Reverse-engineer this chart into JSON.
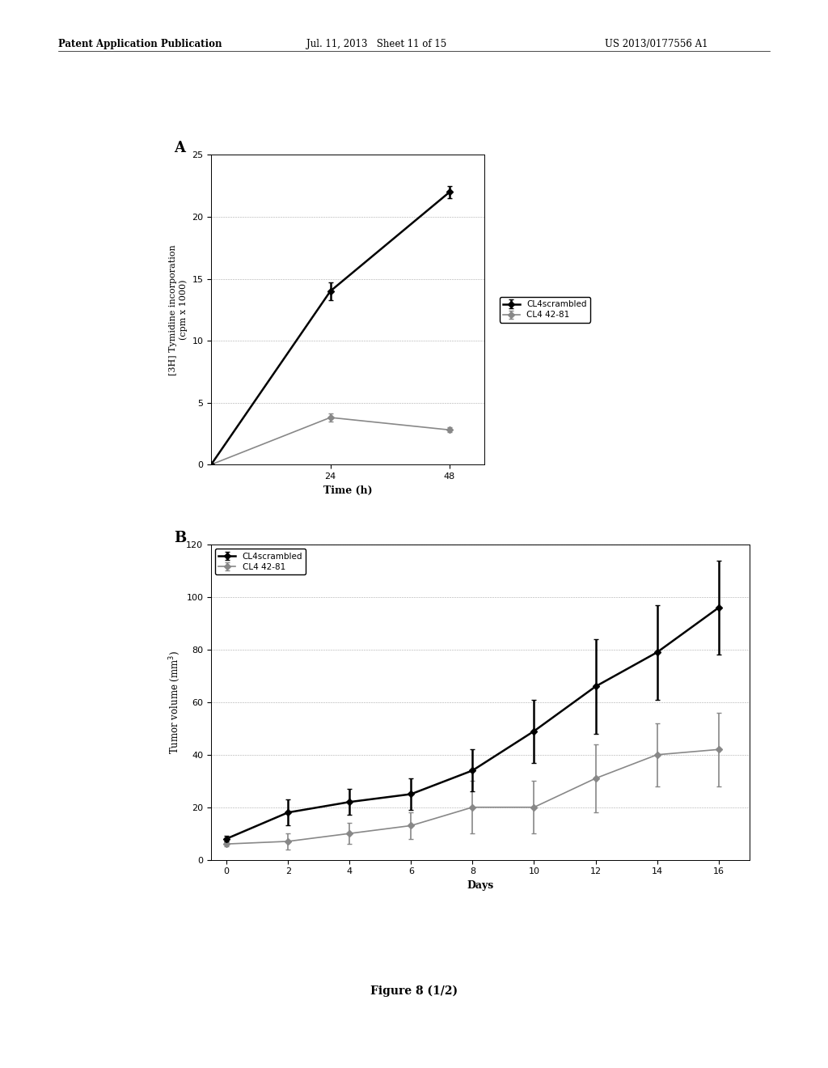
{
  "background_color": "#ffffff",
  "header_left": "Patent Application Publication",
  "header_mid": "Jul. 11, 2013   Sheet 11 of 15",
  "header_right": "US 2013/0177556 A1",
  "figure_label": "Figure 8 (1/2)",
  "chartA": {
    "label": "A",
    "xlabel": "Time (h)",
    "ylabel": "[3H] Tymidine incorporation\n(cpm x 1000)",
    "xlim": [
      0,
      55
    ],
    "ylim": [
      0,
      25
    ],
    "xticks": [
      24,
      48
    ],
    "yticks": [
      0,
      5,
      10,
      15,
      20,
      25
    ],
    "line1": {
      "label": "CL4scrambled",
      "x": [
        0,
        24,
        48
      ],
      "y": [
        0,
        14.0,
        22.0
      ],
      "yerr": [
        0,
        0.7,
        0.5
      ],
      "color": "#000000",
      "marker": "D",
      "markersize": 4,
      "linewidth": 1.8
    },
    "line2": {
      "label": "CL4 42-81",
      "x": [
        0,
        24,
        48
      ],
      "y": [
        0,
        3.8,
        2.8
      ],
      "yerr": [
        0,
        0.3,
        0.2
      ],
      "color": "#888888",
      "marker": "D",
      "markersize": 4,
      "linewidth": 1.2
    }
  },
  "chartB": {
    "label": "B",
    "xlabel": "Days",
    "ylabel": "Tumor volume (mm3)",
    "xlim": [
      -0.5,
      17
    ],
    "ylim": [
      0,
      120
    ],
    "xticks": [
      0,
      2,
      4,
      6,
      8,
      10,
      12,
      14,
      16
    ],
    "yticks": [
      0,
      20,
      40,
      60,
      80,
      100,
      120
    ],
    "line1": {
      "label": "CL4scrambled",
      "x": [
        0,
        2,
        4,
        6,
        8,
        10,
        12,
        14,
        16
      ],
      "y": [
        8,
        18,
        22,
        25,
        34,
        49,
        66,
        79,
        96
      ],
      "yerr": [
        1,
        5,
        5,
        6,
        8,
        12,
        18,
        18,
        18
      ],
      "color": "#000000",
      "marker": "D",
      "markersize": 4,
      "linewidth": 1.8
    },
    "line2": {
      "label": "CL4 42-81",
      "x": [
        0,
        2,
        4,
        6,
        8,
        10,
        12,
        14,
        16
      ],
      "y": [
        6,
        7,
        10,
        13,
        20,
        20,
        31,
        40,
        42
      ],
      "yerr": [
        1,
        3,
        4,
        5,
        10,
        10,
        13,
        12,
        14
      ],
      "color": "#888888",
      "marker": "D",
      "markersize": 4,
      "linewidth": 1.2
    }
  }
}
